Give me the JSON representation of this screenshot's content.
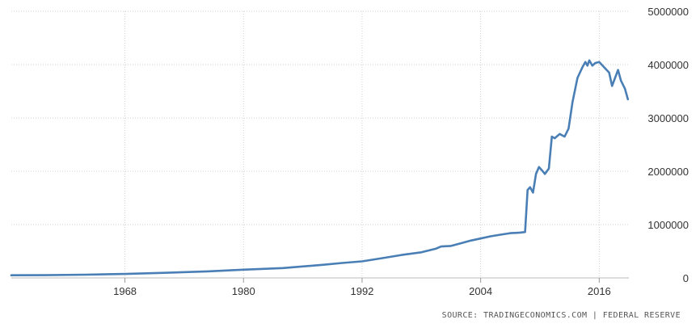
{
  "chart_data": {
    "type": "line",
    "title": "",
    "xlabel": "",
    "ylabel": "",
    "xlim": [
      1956.5,
      2019.0
    ],
    "ylim": [
      0,
      5000000
    ],
    "x_ticks": [
      1968,
      1980,
      1992,
      2004,
      2016
    ],
    "x_tick_labels": [
      "1968",
      "1980",
      "1992",
      "2004",
      "2016"
    ],
    "y_ticks": [
      0,
      1000000,
      2000000,
      3000000,
      4000000,
      5000000
    ],
    "y_tick_labels": [
      "0",
      "1000000",
      "2000000",
      "3000000",
      "4000000",
      "5000000"
    ],
    "grid": true,
    "legend": "none",
    "line_color": "#4a7fb5",
    "series": [
      {
        "x": [
          1956.5,
          1960,
          1964,
          1968,
          1972,
          1976,
          1980,
          1984,
          1988,
          1990,
          1992,
          1994,
          1996,
          1998,
          1999.5,
          2000,
          2001,
          2002,
          2003,
          2004,
          2005,
          2006,
          2007,
          2008.0,
          2008.5,
          2008.75,
          2009,
          2009.3,
          2009.6,
          2009.9,
          2010.2,
          2010.5,
          2010.9,
          2011.2,
          2011.5,
          2012,
          2012.5,
          2012.9,
          2013.3,
          2013.8,
          2014.3,
          2014.6,
          2014.8,
          2015.0,
          2015.3,
          2015.6,
          2016.0,
          2016.5,
          2017.0,
          2017.3,
          2017.6,
          2017.9,
          2018.2,
          2018.6,
          2018.9
        ],
        "y": [
          50000,
          52000,
          60000,
          75000,
          95000,
          120000,
          155000,
          185000,
          245000,
          280000,
          310000,
          370000,
          430000,
          480000,
          550000,
          590000,
          600000,
          650000,
          700000,
          740000,
          780000,
          810000,
          840000,
          850000,
          860000,
          1650000,
          1700000,
          1600000,
          1950000,
          2080000,
          2020000,
          1950000,
          2050000,
          2650000,
          2620000,
          2700000,
          2650000,
          2800000,
          3300000,
          3750000,
          3950000,
          4050000,
          3980000,
          4080000,
          3980000,
          4030000,
          4050000,
          3950000,
          3850000,
          3600000,
          3750000,
          3900000,
          3700000,
          3550000,
          3350000
        ]
      }
    ]
  },
  "source": "SOURCE: TRADINGECONOMICS.COM | FEDERAL RESERVE"
}
